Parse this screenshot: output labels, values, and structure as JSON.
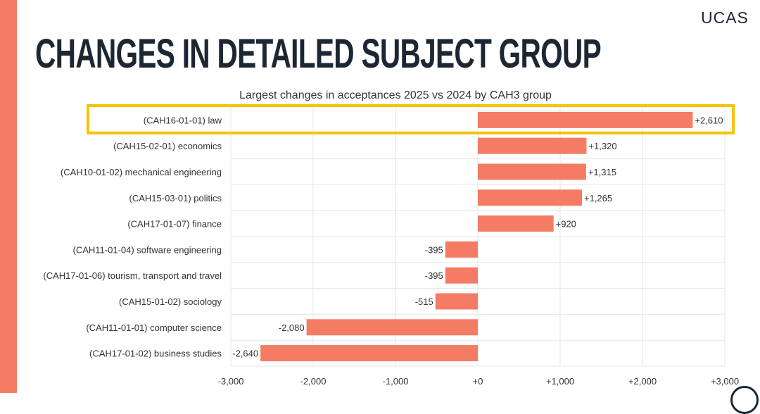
{
  "logo": "UCAS",
  "page_title": "CHANGES IN DETAILED SUBJECT GROUP",
  "colors": {
    "bar": "#f47c65",
    "highlight": "#f5c400",
    "title": "#1c2733"
  },
  "chart_data": {
    "type": "bar",
    "orientation": "horizontal",
    "title": "Largest changes in acceptances 2025 vs 2024 by CAH3 group",
    "categories": [
      "(CAH16-01-01) law",
      "(CAH15-02-01) economics",
      "(CAH10-01-02) mechanical engineering",
      "(CAH15-03-01) politics",
      "(CAH17-01-07) finance",
      "(CAH11-01-04) software engineering",
      "(CAH17-01-06) tourism, transport and travel",
      "(CAH15-01-02) sociology",
      "(CAH11-01-01) computer science",
      "(CAH17-01-02) business studies"
    ],
    "values": [
      2610,
      1320,
      1315,
      1265,
      920,
      -395,
      -395,
      -515,
      -2080,
      -2640
    ],
    "value_labels": [
      "+2,610",
      "+1,320",
      "+1,315",
      "+1,265",
      "+920",
      "-395",
      "-395",
      "-515",
      "-2,080",
      "-2,640"
    ],
    "xlim": [
      -3000,
      3000
    ],
    "x_ticks": [
      -3000,
      -2000,
      -1000,
      0,
      1000,
      2000,
      3000
    ],
    "x_tick_labels": [
      "-3,000",
      "-2,000",
      "-1,000",
      "+0",
      "+1,000",
      "+2,000",
      "+3,000"
    ],
    "highlighted_category": "(CAH16-01-01) law",
    "grid": true
  }
}
